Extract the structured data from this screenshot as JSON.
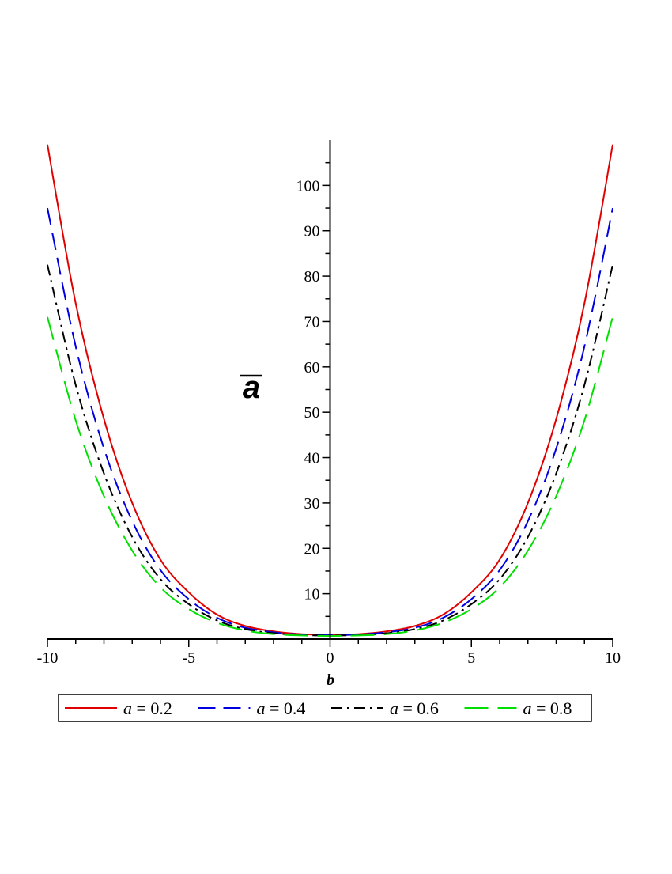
{
  "chart_data": {
    "type": "line",
    "xlabel": "b",
    "ylabel": "a",
    "ylabel_overline": true,
    "xlim": [
      -10,
      10
    ],
    "ylim": [
      0,
      110
    ],
    "xticks": [
      "-10",
      "-5",
      "0",
      "5",
      "10"
    ],
    "xtick_values": [
      -10,
      -5,
      0,
      5,
      10
    ],
    "yticks": [
      "10",
      "20",
      "30",
      "40",
      "50",
      "60",
      "70",
      "80",
      "90",
      "100"
    ],
    "ytick_values": [
      10,
      20,
      30,
      40,
      50,
      60,
      70,
      80,
      90,
      100
    ],
    "grid": false,
    "legend_position": "bottom",
    "x": [
      -10,
      -9,
      -8,
      -7,
      -6,
      -5,
      -4,
      -3,
      -2,
      -1,
      0,
      1,
      2,
      3,
      4,
      5,
      6,
      7,
      8,
      9,
      10
    ],
    "series": [
      {
        "name": "a = 0.2",
        "var": "a",
        "value": "0.2",
        "color": "#e00000",
        "dash": "solid",
        "values": [
          109,
          74,
          48.5,
          30,
          17.5,
          10.3,
          5.4,
          2.9,
          1.7,
          1.1,
          1,
          1.1,
          1.7,
          2.9,
          5.4,
          10.3,
          17.5,
          30,
          48.5,
          74,
          109
        ]
      },
      {
        "name": "a = 0.4",
        "var": "a",
        "value": "0.4",
        "color": "#0000e0",
        "dash": "dash",
        "values": [
          95,
          64.5,
          42,
          26,
          15.2,
          8.8,
          4.7,
          2.5,
          1.5,
          1,
          0.9,
          1,
          1.5,
          2.5,
          4.7,
          8.8,
          15.2,
          26,
          42,
          64.5,
          95
        ]
      },
      {
        "name": "a = 0.6",
        "var": "a",
        "value": "0.6",
        "color": "#000000",
        "dash": "dashdot",
        "values": [
          82.5,
          56,
          36.5,
          22.5,
          13.2,
          7.7,
          4.1,
          2.2,
          1.3,
          0.9,
          0.8,
          0.9,
          1.3,
          2.2,
          4.1,
          7.7,
          13.2,
          22.5,
          36.5,
          56,
          82.5
        ]
      },
      {
        "name": "a = 0.8",
        "var": "a",
        "value": "0.8",
        "color": "#00e000",
        "dash": "longdash",
        "values": [
          71,
          48.2,
          31.5,
          19.5,
          11.4,
          6.6,
          3.6,
          1.9,
          1.1,
          0.8,
          0.7,
          0.8,
          1.1,
          1.9,
          3.6,
          6.6,
          11.4,
          19.5,
          31.5,
          48.2,
          71
        ]
      }
    ]
  }
}
